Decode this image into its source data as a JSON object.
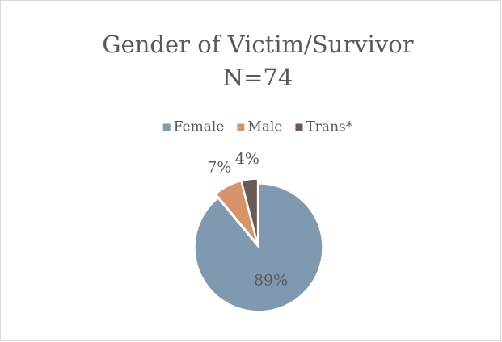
{
  "chart_data": {
    "type": "pie",
    "title": "Gender of Victim/Survivor",
    "subtitle": "N=74",
    "categories": [
      "Female",
      "Male",
      "Trans*"
    ],
    "values": [
      89,
      7,
      4
    ],
    "value_labels": [
      "89%",
      "7%",
      "4%"
    ],
    "colors": [
      "#7f99b1",
      "#d5946a",
      "#6b5b57"
    ],
    "legend": "top"
  }
}
